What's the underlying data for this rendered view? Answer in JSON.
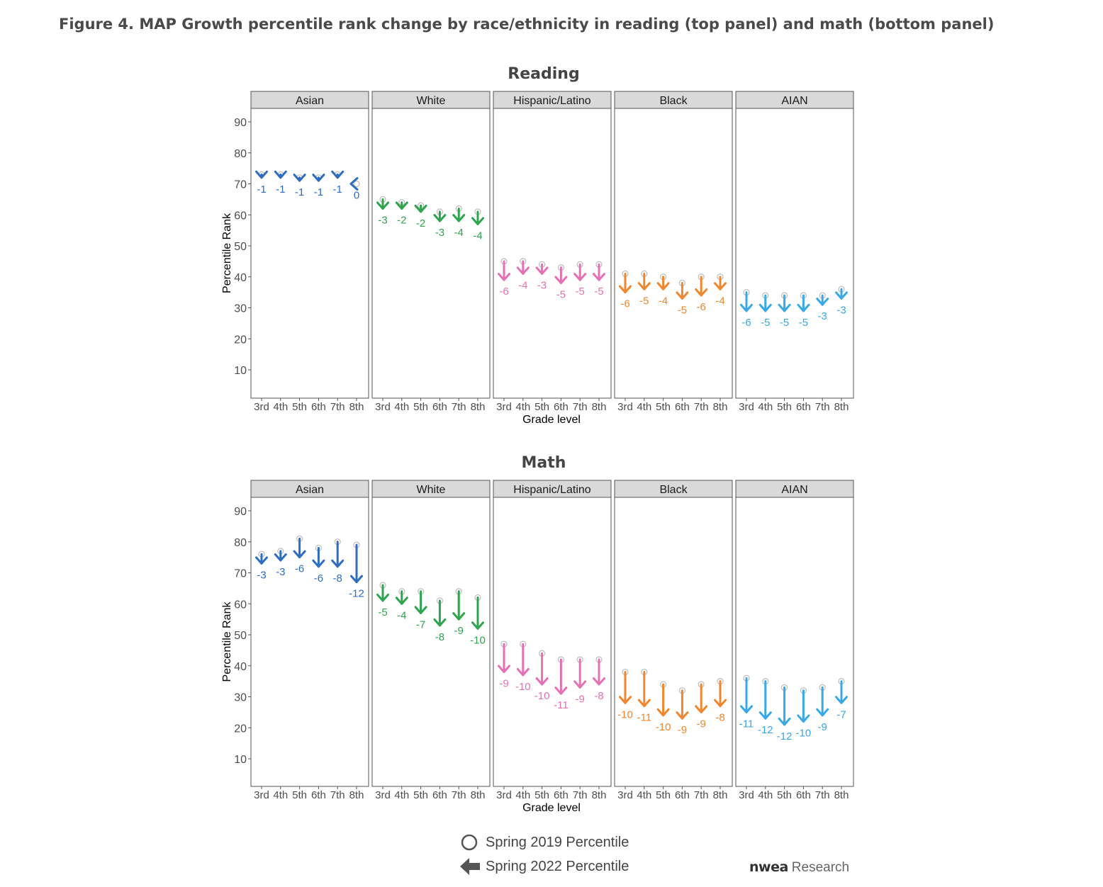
{
  "figure_title": "Figure 4. MAP Growth percentile rank change by race/ethnicity in reading (top panel) and math (bottom panel)",
  "legend": {
    "circle_label": "Spring 2019 Percentile",
    "arrow_label": "Spring 2022 Percentile"
  },
  "brand": {
    "main": "nwea",
    "sub": "Research"
  },
  "colors": {
    "Asian": "#2e6dbf",
    "White": "#2ea44f",
    "Hispanic/Latino": "#e570b4",
    "Black": "#f0862e",
    "AIAN": "#38a8e6"
  },
  "chart_data": [
    {
      "type": "arrow-dot",
      "title": "Reading",
      "xlabel": "Grade level",
      "ylabel": "Percentile Rank",
      "ylim": [
        0,
        95
      ],
      "yticks": [
        10,
        20,
        30,
        40,
        50,
        60,
        70,
        80,
        90
      ],
      "categories": [
        "3rd",
        "4th",
        "5th",
        "6th",
        "7th",
        "8th"
      ],
      "facets": [
        {
          "name": "Asian",
          "spring2019": [
            73,
            73,
            72,
            72,
            73,
            70
          ],
          "change": [
            "-1",
            "-1",
            "-1",
            "-1",
            "-1",
            "0"
          ]
        },
        {
          "name": "White",
          "spring2019": [
            65,
            64,
            63,
            61,
            62,
            61
          ],
          "change": [
            "-3",
            "-2",
            "-2",
            "-3",
            "-4",
            "-4"
          ]
        },
        {
          "name": "Hispanic/Latino",
          "spring2019": [
            45,
            45,
            44,
            43,
            44,
            44
          ],
          "change": [
            "-6",
            "-4",
            "-3",
            "-5",
            "-5",
            "-5"
          ]
        },
        {
          "name": "Black",
          "spring2019": [
            41,
            41,
            40,
            38,
            40,
            40
          ],
          "change": [
            "-6",
            "-5",
            "-4",
            "-5",
            "-6",
            "-4"
          ]
        },
        {
          "name": "AIAN",
          "spring2019": [
            35,
            34,
            34,
            34,
            34,
            36
          ],
          "change": [
            "-6",
            "-5",
            "-5",
            "-5",
            "-3",
            "-3"
          ]
        }
      ]
    },
    {
      "type": "arrow-dot",
      "title": "Math",
      "xlabel": "Grade level",
      "ylabel": "Percentile Rank",
      "ylim": [
        0,
        95
      ],
      "yticks": [
        10,
        20,
        30,
        40,
        50,
        60,
        70,
        80,
        90
      ],
      "categories": [
        "3rd",
        "4th",
        "5th",
        "6th",
        "7th",
        "8th"
      ],
      "facets": [
        {
          "name": "Asian",
          "spring2019": [
            76,
            77,
            81,
            78,
            80,
            79
          ],
          "change": [
            "-3",
            "-3",
            "-6",
            "-6",
            "-8",
            "-12"
          ]
        },
        {
          "name": "White",
          "spring2019": [
            66,
            64,
            64,
            61,
            64,
            62
          ],
          "change": [
            "-5",
            "-4",
            "-7",
            "-8",
            "-9",
            "-10"
          ]
        },
        {
          "name": "Hispanic/Latino",
          "spring2019": [
            47,
            47,
            44,
            42,
            42,
            42
          ],
          "change": [
            "-9",
            "-10",
            "-10",
            "-11",
            "-9",
            "-8"
          ]
        },
        {
          "name": "Black",
          "spring2019": [
            38,
            38,
            34,
            32,
            34,
            35
          ],
          "change": [
            "-10",
            "-11",
            "-10",
            "-9",
            "-9",
            "-8"
          ]
        },
        {
          "name": "AIAN",
          "spring2019": [
            36,
            35,
            33,
            32,
            33,
            35
          ],
          "change": [
            "-11",
            "-12",
            "-12",
            "-10",
            "-9",
            "-7"
          ]
        }
      ]
    }
  ]
}
